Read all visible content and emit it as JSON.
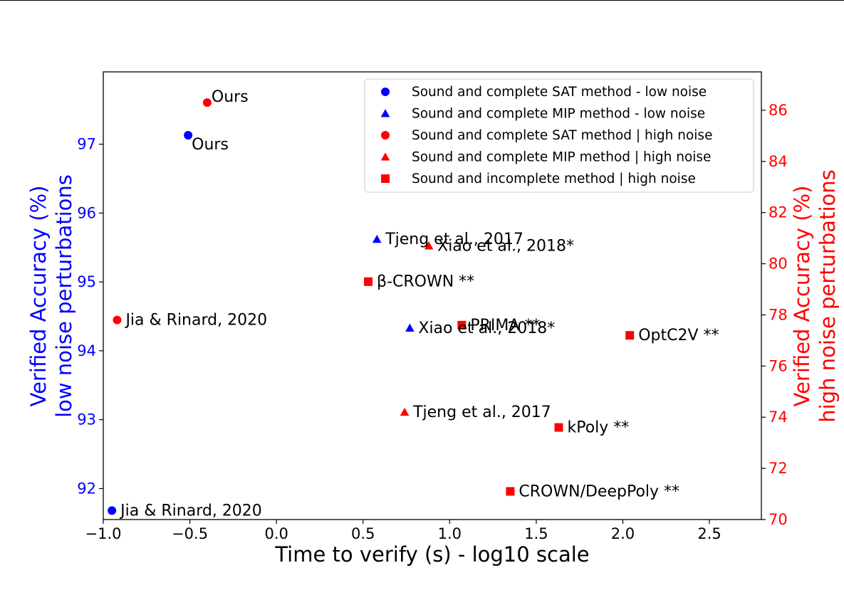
{
  "chart_data": {
    "type": "scatter",
    "title": "",
    "xlabel": "Time to verify (s) - log10 scale",
    "ylabel_left": [
      "Verified Accuracy (%)",
      "low noise perturbations"
    ],
    "ylabel_right": [
      "Verified Accuracy (%)",
      "high noise perturbations"
    ],
    "xlim": [
      -1.0,
      2.8
    ],
    "ylim_left": [
      91.55,
      98.05
    ],
    "ylim_right": [
      70.0,
      87.5
    ],
    "x_ticks": [
      -1.0,
      -0.5,
      0.0,
      0.5,
      1.0,
      1.5,
      2.0,
      2.5
    ],
    "x_tick_labels": [
      "−1.0",
      "−0.5",
      "0.0",
      "0.5",
      "1.0",
      "1.5",
      "2.0",
      "2.5"
    ],
    "y_left_ticks": [
      92,
      93,
      94,
      95,
      96,
      97
    ],
    "y_right_ticks": [
      70,
      72,
      74,
      76,
      78,
      80,
      82,
      84,
      86
    ],
    "colors": {
      "low": "#0000ff",
      "high": "#ff0000",
      "axis": "#000000"
    },
    "legend_position": "top-right",
    "legend": [
      {
        "label": "Sound and complete SAT method - low noise",
        "marker": "circle",
        "color": "#0000ff"
      },
      {
        "label": "Sound and complete MIP method - low noise",
        "marker": "triangle",
        "color": "#0000ff"
      },
      {
        "label": "Sound and complete SAT method | high noise",
        "marker": "circle",
        "color": "#ff0000"
      },
      {
        "label": "Sound and complete MIP method | high noise",
        "marker": "triangle",
        "color": "#ff0000"
      },
      {
        "label": "Sound and incomplete method | high noise",
        "marker": "square",
        "color": "#ff0000"
      }
    ],
    "series": [
      {
        "axis": "left",
        "marker": "circle",
        "color": "#0000ff",
        "x": -0.51,
        "y": 97.13,
        "label": "Ours",
        "label_pos": "below-right"
      },
      {
        "axis": "left",
        "marker": "circle",
        "color": "#0000ff",
        "x": -0.95,
        "y": 91.68,
        "label": "Jia & Rinard, 2020",
        "label_pos": "right"
      },
      {
        "axis": "left",
        "marker": "triangle",
        "color": "#0000ff",
        "x": 0.58,
        "y": 95.62,
        "label": "Tjeng et al., 2017",
        "label_pos": "right"
      },
      {
        "axis": "left",
        "marker": "triangle",
        "color": "#0000ff",
        "x": 0.77,
        "y": 94.33,
        "label": "Xiao et al., 2018*",
        "label_pos": "right"
      },
      {
        "axis": "right",
        "marker": "circle",
        "color": "#ff0000",
        "x": -0.4,
        "y": 86.3,
        "label": "Ours",
        "label_pos": "above-right"
      },
      {
        "axis": "right",
        "marker": "circle",
        "color": "#ff0000",
        "x": -0.92,
        "y": 77.8,
        "label": "Jia & Rinard, 2020",
        "label_pos": "right"
      },
      {
        "axis": "right",
        "marker": "triangle",
        "color": "#ff0000",
        "x": 0.88,
        "y": 80.7,
        "label": "Xiao et al., 2018*",
        "label_pos": "right"
      },
      {
        "axis": "right",
        "marker": "triangle",
        "color": "#ff0000",
        "x": 0.74,
        "y": 74.2,
        "label": "Tjeng et al., 2017",
        "label_pos": "right"
      },
      {
        "axis": "right",
        "marker": "square",
        "color": "#ff0000",
        "x": 0.53,
        "y": 79.3,
        "label": "β-CROWN **",
        "label_pos": "right"
      },
      {
        "axis": "right",
        "marker": "square",
        "color": "#ff0000",
        "x": 1.07,
        "y": 77.6,
        "label": "PRIMA **",
        "label_pos": "right"
      },
      {
        "axis": "right",
        "marker": "square",
        "color": "#ff0000",
        "x": 2.04,
        "y": 77.2,
        "label": "OptC2V **",
        "label_pos": "right"
      },
      {
        "axis": "right",
        "marker": "square",
        "color": "#ff0000",
        "x": 1.63,
        "y": 73.6,
        "label": "kPoly **",
        "label_pos": "right"
      },
      {
        "axis": "right",
        "marker": "square",
        "color": "#ff0000",
        "x": 1.35,
        "y": 71.1,
        "label": "CROWN/DeepPoly **",
        "label_pos": "right"
      }
    ]
  }
}
